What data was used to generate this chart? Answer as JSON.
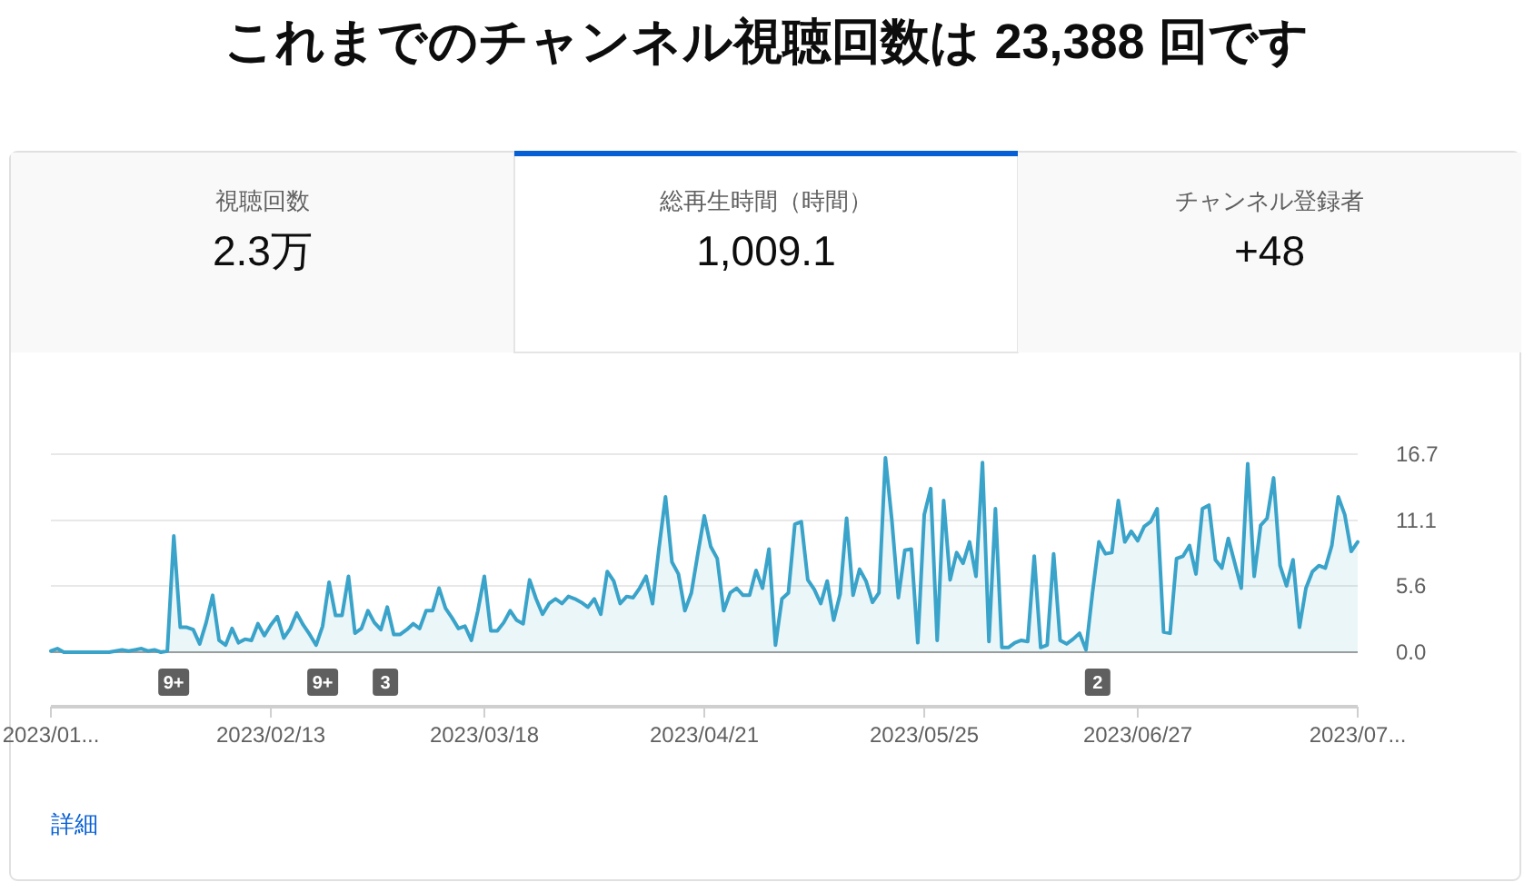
{
  "chart_data": {
    "type": "area",
    "title": "これまでのチャンネル視聴回数は 23,388 回です",
    "x": [
      "2023-01-10",
      "2023-01-11",
      "2023-01-12",
      "2023-01-13",
      "2023-01-14",
      "2023-01-15",
      "2023-01-16",
      "2023-01-17",
      "2023-01-18",
      "2023-01-19",
      "2023-01-20",
      "2023-01-21",
      "2023-01-22",
      "2023-01-23",
      "2023-01-24",
      "2023-01-25",
      "2023-01-26",
      "2023-01-27",
      "2023-01-28",
      "2023-01-29",
      "2023-01-30",
      "2023-01-31",
      "2023-02-01",
      "2023-02-02",
      "2023-02-03",
      "2023-02-04",
      "2023-02-05",
      "2023-02-06",
      "2023-02-07",
      "2023-02-08",
      "2023-02-09",
      "2023-02-10",
      "2023-02-11",
      "2023-02-12",
      "2023-02-13",
      "2023-02-14",
      "2023-02-15",
      "2023-02-16",
      "2023-02-17",
      "2023-02-18",
      "2023-02-19",
      "2023-02-20",
      "2023-02-21",
      "2023-02-22",
      "2023-02-23",
      "2023-02-24",
      "2023-02-25",
      "2023-02-26",
      "2023-02-27",
      "2023-02-28",
      "2023-03-01",
      "2023-03-02",
      "2023-03-03",
      "2023-03-04",
      "2023-03-05",
      "2023-03-06",
      "2023-03-07",
      "2023-03-08",
      "2023-03-09",
      "2023-03-10",
      "2023-03-11",
      "2023-03-12",
      "2023-03-13",
      "2023-03-14",
      "2023-03-15",
      "2023-03-16",
      "2023-03-17",
      "2023-03-18",
      "2023-03-19",
      "2023-03-20",
      "2023-03-21",
      "2023-03-22",
      "2023-03-23",
      "2023-03-24",
      "2023-03-25",
      "2023-03-26",
      "2023-03-27",
      "2023-03-28",
      "2023-03-29",
      "2023-03-30",
      "2023-03-31",
      "2023-04-01",
      "2023-04-02",
      "2023-04-03",
      "2023-04-04",
      "2023-04-05",
      "2023-04-06",
      "2023-04-07",
      "2023-04-08",
      "2023-04-09",
      "2023-04-10",
      "2023-04-11",
      "2023-04-12",
      "2023-04-13",
      "2023-04-14",
      "2023-04-15",
      "2023-04-16",
      "2023-04-17",
      "2023-04-18",
      "2023-04-19",
      "2023-04-20",
      "2023-04-21",
      "2023-04-22",
      "2023-04-23",
      "2023-04-24",
      "2023-04-25",
      "2023-04-26",
      "2023-04-27",
      "2023-04-28",
      "2023-04-29",
      "2023-04-30",
      "2023-05-01",
      "2023-05-02",
      "2023-05-03",
      "2023-05-04",
      "2023-05-05",
      "2023-05-06",
      "2023-05-07",
      "2023-05-08",
      "2023-05-09",
      "2023-05-10",
      "2023-05-11",
      "2023-05-12",
      "2023-05-13",
      "2023-05-14",
      "2023-05-15",
      "2023-05-16",
      "2023-05-17",
      "2023-05-18",
      "2023-05-19",
      "2023-05-20",
      "2023-05-21",
      "2023-05-22",
      "2023-05-23",
      "2023-05-24",
      "2023-05-25",
      "2023-05-26",
      "2023-05-27",
      "2023-05-28",
      "2023-05-29",
      "2023-05-30",
      "2023-05-31",
      "2023-06-01",
      "2023-06-02",
      "2023-06-03",
      "2023-06-04",
      "2023-06-05",
      "2023-06-06",
      "2023-06-07",
      "2023-06-08",
      "2023-06-09",
      "2023-06-10",
      "2023-06-11",
      "2023-06-12",
      "2023-06-13",
      "2023-06-14",
      "2023-06-15",
      "2023-06-16",
      "2023-06-17",
      "2023-06-18",
      "2023-06-19",
      "2023-06-20",
      "2023-06-21",
      "2023-06-22",
      "2023-06-23",
      "2023-06-24",
      "2023-06-25",
      "2023-06-26",
      "2023-06-27",
      "2023-06-28",
      "2023-06-29",
      "2023-06-30",
      "2023-07-01",
      "2023-07-02",
      "2023-07-03",
      "2023-07-04",
      "2023-07-05",
      "2023-07-06",
      "2023-07-07",
      "2023-07-08",
      "2023-07-09",
      "2023-07-10",
      "2023-07-11",
      "2023-07-12",
      "2023-07-13",
      "2023-07-14",
      "2023-07-15",
      "2023-07-16",
      "2023-07-17",
      "2023-07-18",
      "2023-07-19",
      "2023-07-20",
      "2023-07-21",
      "2023-07-22",
      "2023-07-23",
      "2023-07-24",
      "2023-07-25",
      "2023-07-26",
      "2023-07-27",
      "2023-07-28",
      "2023-07-29",
      "2023-07-30",
      "2023-07-31"
    ],
    "series": [
      {
        "color": "#3aa3c9",
        "values": [
          0.1,
          0.3,
          0,
          0,
          0,
          0,
          0,
          0,
          0,
          0,
          0.1,
          0.2,
          0.1,
          0.2,
          0.3,
          0.1,
          0.2,
          0,
          0.1,
          9.8,
          2.1,
          2.1,
          1.9,
          0.7,
          2.5,
          4.8,
          1.0,
          0.6,
          2.0,
          0.8,
          1.1,
          1.0,
          2.4,
          1.4,
          2.3,
          3.0,
          1.2,
          2.0,
          3.3,
          2.3,
          1.5,
          0.6,
          2.2,
          5.9,
          3.1,
          3.1,
          6.4,
          1.6,
          2.0,
          3.5,
          2.5,
          1.9,
          3.8,
          1.5,
          1.5,
          1.9,
          2.4,
          2.0,
          3.5,
          3.5,
          5.4,
          3.7,
          2.9,
          2.0,
          2.2,
          1.0,
          3.5,
          6.4,
          1.8,
          1.8,
          2.5,
          3.5,
          2.7,
          2.4,
          6.1,
          4.5,
          3.2,
          4.1,
          4.5,
          4.1,
          4.7,
          4.5,
          4.2,
          3.8,
          4.5,
          3.2,
          6.8,
          6.0,
          4.1,
          4.7,
          4.6,
          5.4,
          6.4,
          4.1,
          8.8,
          13.1,
          7.6,
          6.6,
          3.5,
          5.0,
          8.3,
          11.5,
          8.9,
          7.9,
          3.5,
          5.0,
          5.4,
          4.8,
          4.8,
          6.9,
          5.4,
          8.7,
          0.6,
          4.5,
          5.0,
          10.8,
          11.0,
          6.1,
          5.3,
          4.1,
          6.0,
          2.7,
          4.9,
          11.3,
          4.8,
          7.0,
          6.0,
          4.2,
          5.0,
          16.4,
          11.1,
          4.6,
          8.6,
          8.7,
          0.8,
          11.6,
          13.8,
          1.0,
          12.8,
          6.1,
          8.4,
          7.5,
          9.3,
          6.4,
          16.0,
          0.9,
          12.1,
          0.4,
          0.4,
          0.8,
          1.0,
          0.9,
          8.1,
          0.4,
          0.6,
          8.3,
          1.0,
          0.7,
          1.1,
          1.6,
          0.2,
          5.0,
          9.3,
          8.3,
          8.4,
          12.8,
          9.3,
          10.2,
          9.4,
          10.6,
          11.0,
          12.1,
          1.7,
          1.6,
          7.9,
          8.1,
          9.0,
          6.6,
          12.1,
          12.4,
          7.8,
          7.1,
          9.6,
          7.5,
          5.4,
          15.9,
          6.4,
          10.7,
          11.3,
          14.7,
          7.3,
          5.6,
          7.8,
          2.1,
          5.4,
          6.8,
          7.3,
          7.1,
          9.0,
          13.1,
          11.6,
          8.5,
          9.3
        ]
      }
    ],
    "xlim": [
      "2023-01-10",
      "2023-07-31"
    ],
    "xticks": [
      {
        "value": "2023-01-10",
        "label": "2023/01..."
      },
      {
        "value": "2023-02-13",
        "label": "2023/02/13"
      },
      {
        "value": "2023-03-18",
        "label": "2023/03/18"
      },
      {
        "value": "2023-04-21",
        "label": "2023/04/21"
      },
      {
        "value": "2023-05-25",
        "label": "2023/05/25"
      },
      {
        "value": "2023-06-27",
        "label": "2023/06/27"
      },
      {
        "value": "2023-07-31",
        "label": "2023/07..."
      }
    ],
    "ylim": [
      0,
      16.7
    ],
    "yticks": [
      {
        "value": 0,
        "label": "0.0"
      },
      5.6,
      11.1,
      16.7
    ],
    "grid": "y",
    "annotations": [
      "視聴回数",
      "2.3万",
      "総再生時間（時間）",
      "1,009.1",
      "チャンネル登録者",
      "+48",
      "詳細",
      "9+",
      "9+",
      "3",
      "2"
    ]
  }
}
